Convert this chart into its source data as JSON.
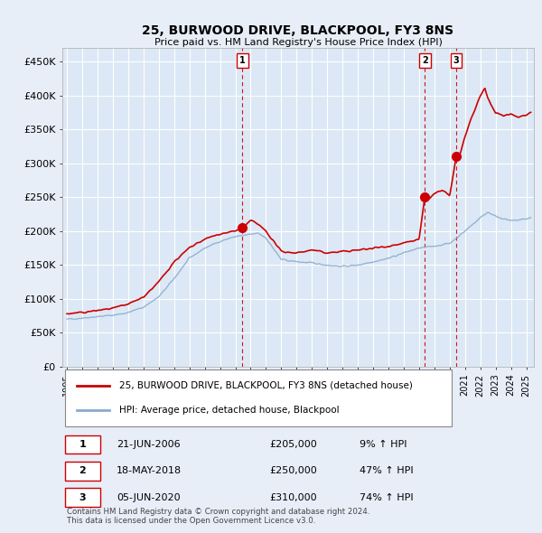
{
  "title": "25, BURWOOD DRIVE, BLACKPOOL, FY3 8NS",
  "subtitle": "Price paid vs. HM Land Registry's House Price Index (HPI)",
  "yticks": [
    0,
    50000,
    100000,
    150000,
    200000,
    250000,
    300000,
    350000,
    400000,
    450000
  ],
  "ytick_labels": [
    "£0",
    "£50K",
    "£100K",
    "£150K",
    "£200K",
    "£250K",
    "£300K",
    "£350K",
    "£400K",
    "£450K"
  ],
  "ylim": [
    0,
    470000
  ],
  "xlim_start": 1994.7,
  "xlim_end": 2025.5,
  "bg_color": "#dce8f5",
  "plot_bg": "#dce8f5",
  "outer_bg": "#e8eef8",
  "red_line_color": "#cc0000",
  "blue_line_color": "#88aacc",
  "grid_color": "#ffffff",
  "sale_dates": [
    2006.47,
    2018.38,
    2020.43
  ],
  "sale_prices": [
    205000,
    250000,
    310000
  ],
  "sale_labels": [
    "1",
    "2",
    "3"
  ],
  "legend_red": "25, BURWOOD DRIVE, BLACKPOOL, FY3 8NS (detached house)",
  "legend_blue": "HPI: Average price, detached house, Blackpool",
  "table_rows": [
    [
      "1",
      "21-JUN-2006",
      "£205,000",
      "9% ↑ HPI"
    ],
    [
      "2",
      "18-MAY-2018",
      "£250,000",
      "47% ↑ HPI"
    ],
    [
      "3",
      "05-JUN-2020",
      "£310,000",
      "74% ↑ HPI"
    ]
  ],
  "footnote1": "Contains HM Land Registry data © Crown copyright and database right 2024.",
  "footnote2": "This data is licensed under the Open Government Licence v3.0.",
  "vline_color": "#cc0000"
}
